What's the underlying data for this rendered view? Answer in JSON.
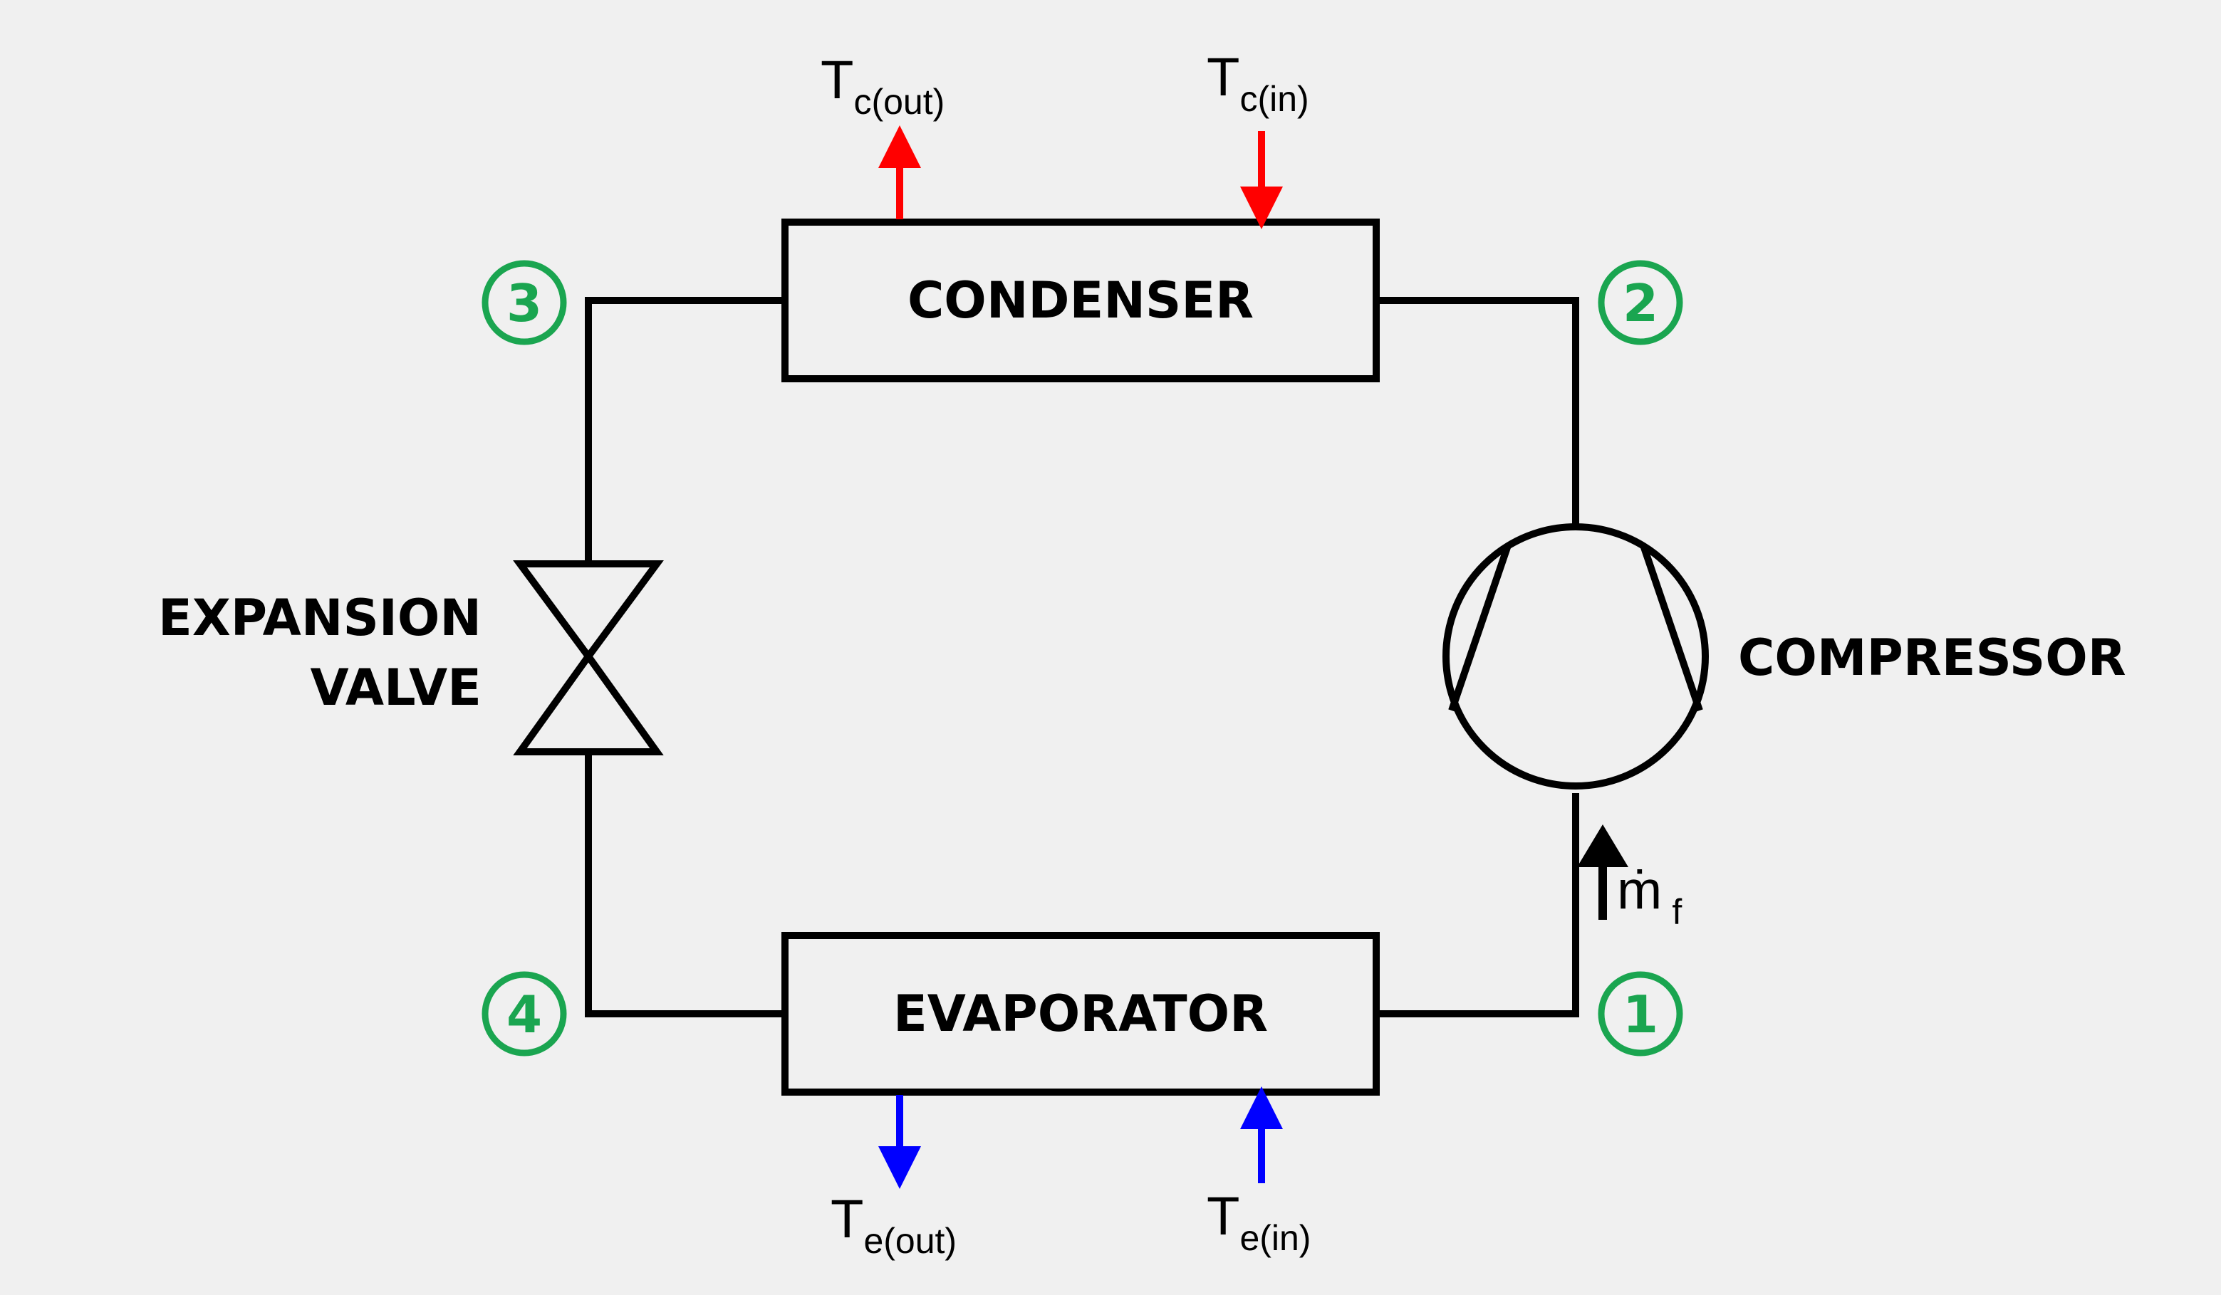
{
  "components": {
    "condenser": "CONDENSER",
    "evaporator": "EVAPORATOR",
    "compressor": "COMPRESSOR",
    "valve_line1": "EXPANSION",
    "valve_line2": "VALVE"
  },
  "states": [
    "1",
    "2",
    "3",
    "4"
  ],
  "temperatures": {
    "condenser_out": {
      "main": "T",
      "sub": "c(out)"
    },
    "condenser_in": {
      "main": "T",
      "sub": "c(in)"
    },
    "evaporator_out": {
      "main": "T",
      "sub": "e(out)"
    },
    "evaporator_in": {
      "main": "T",
      "sub": "e(in)"
    }
  },
  "mass_flow": {
    "main": "ṁ",
    "sub": "f"
  },
  "colors": {
    "background": "#f0f0f0",
    "line": "#000000",
    "state_marker": "#1aa550",
    "hot_stream": "#ff0000",
    "cold_stream": "#0000ff"
  }
}
